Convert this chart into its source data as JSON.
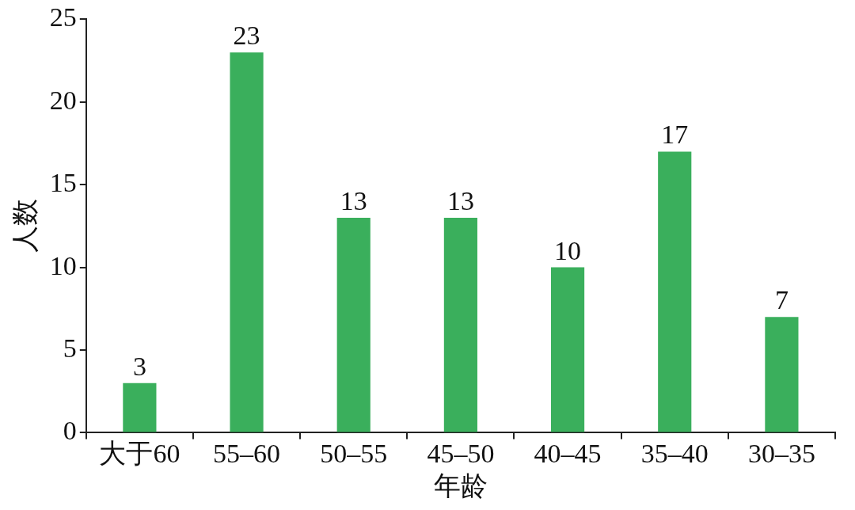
{
  "chart_data": {
    "type": "bar",
    "xlabel": "年龄",
    "ylabel": "人数",
    "categories": [
      "大于60",
      "55–60",
      "50–55",
      "45–50",
      "40–45",
      "35–40",
      "30–35"
    ],
    "values": [
      3,
      23,
      13,
      13,
      10,
      17,
      7
    ],
    "color": "#3aaf5c",
    "ylim": [
      0,
      25
    ],
    "yticks": [
      0,
      5,
      10,
      15,
      20,
      25
    ],
    "grid": false,
    "legend": false,
    "data_labels": true
  }
}
